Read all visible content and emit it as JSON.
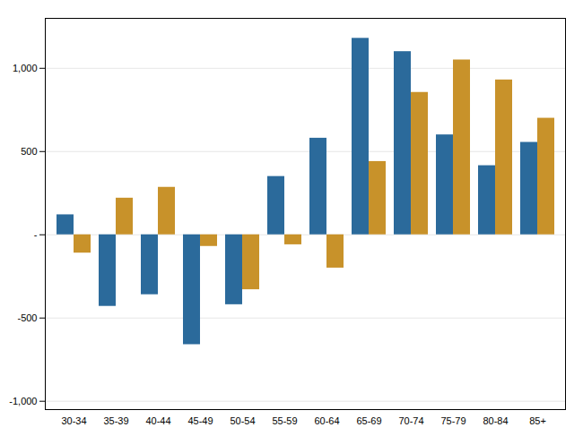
{
  "chart_data": {
    "type": "bar",
    "categories": [
      "30-34",
      "35-39",
      "40-44",
      "45-49",
      "50-54",
      "55-59",
      "60-64",
      "65-69",
      "70-74",
      "75-79",
      "80-84",
      "85+"
    ],
    "series": [
      {
        "color": "#2b6a9b",
        "values": [
          120,
          -430,
          -360,
          -660,
          -420,
          350,
          580,
          1180,
          1100,
          600,
          415,
          555
        ]
      },
      {
        "color": "#c8922a",
        "values": [
          -110,
          220,
          285,
          -70,
          -330,
          -60,
          -200,
          440,
          855,
          1050,
          930,
          700
        ]
      }
    ],
    "ylim": [
      -1050,
      1300
    ],
    "yticks": [
      {
        "value": -1000,
        "label": "-1,000"
      },
      -500,
      {
        "value": 0,
        "label": "-"
      },
      500,
      {
        "value": 1000,
        "label": "1,000"
      }
    ],
    "grid": true
  }
}
